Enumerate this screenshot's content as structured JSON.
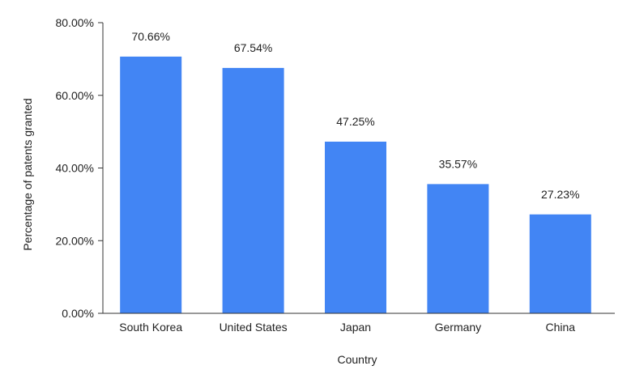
{
  "chart_data": {
    "type": "bar",
    "title": "",
    "xlabel": "Country",
    "ylabel": "Percentage of patents granted",
    "categories": [
      "South Korea",
      "United States",
      "Japan",
      "Germany",
      "China"
    ],
    "series": [
      {
        "values": [
          70.66,
          67.54,
          47.25,
          35.57,
          27.23
        ],
        "data_labels": [
          "70.66%",
          "67.54%",
          "47.25%",
          "35.57%",
          "27.23%"
        ],
        "color": "#4285f4"
      }
    ],
    "ylim": [
      0,
      80
    ],
    "y_ticks": [
      0,
      20,
      40,
      60,
      80
    ],
    "y_tick_labels": [
      "0.00%",
      "20.00%",
      "40.00%",
      "60.00%",
      "80.00%"
    ],
    "grid": false,
    "legend": "none",
    "axis_color": "#333333"
  }
}
